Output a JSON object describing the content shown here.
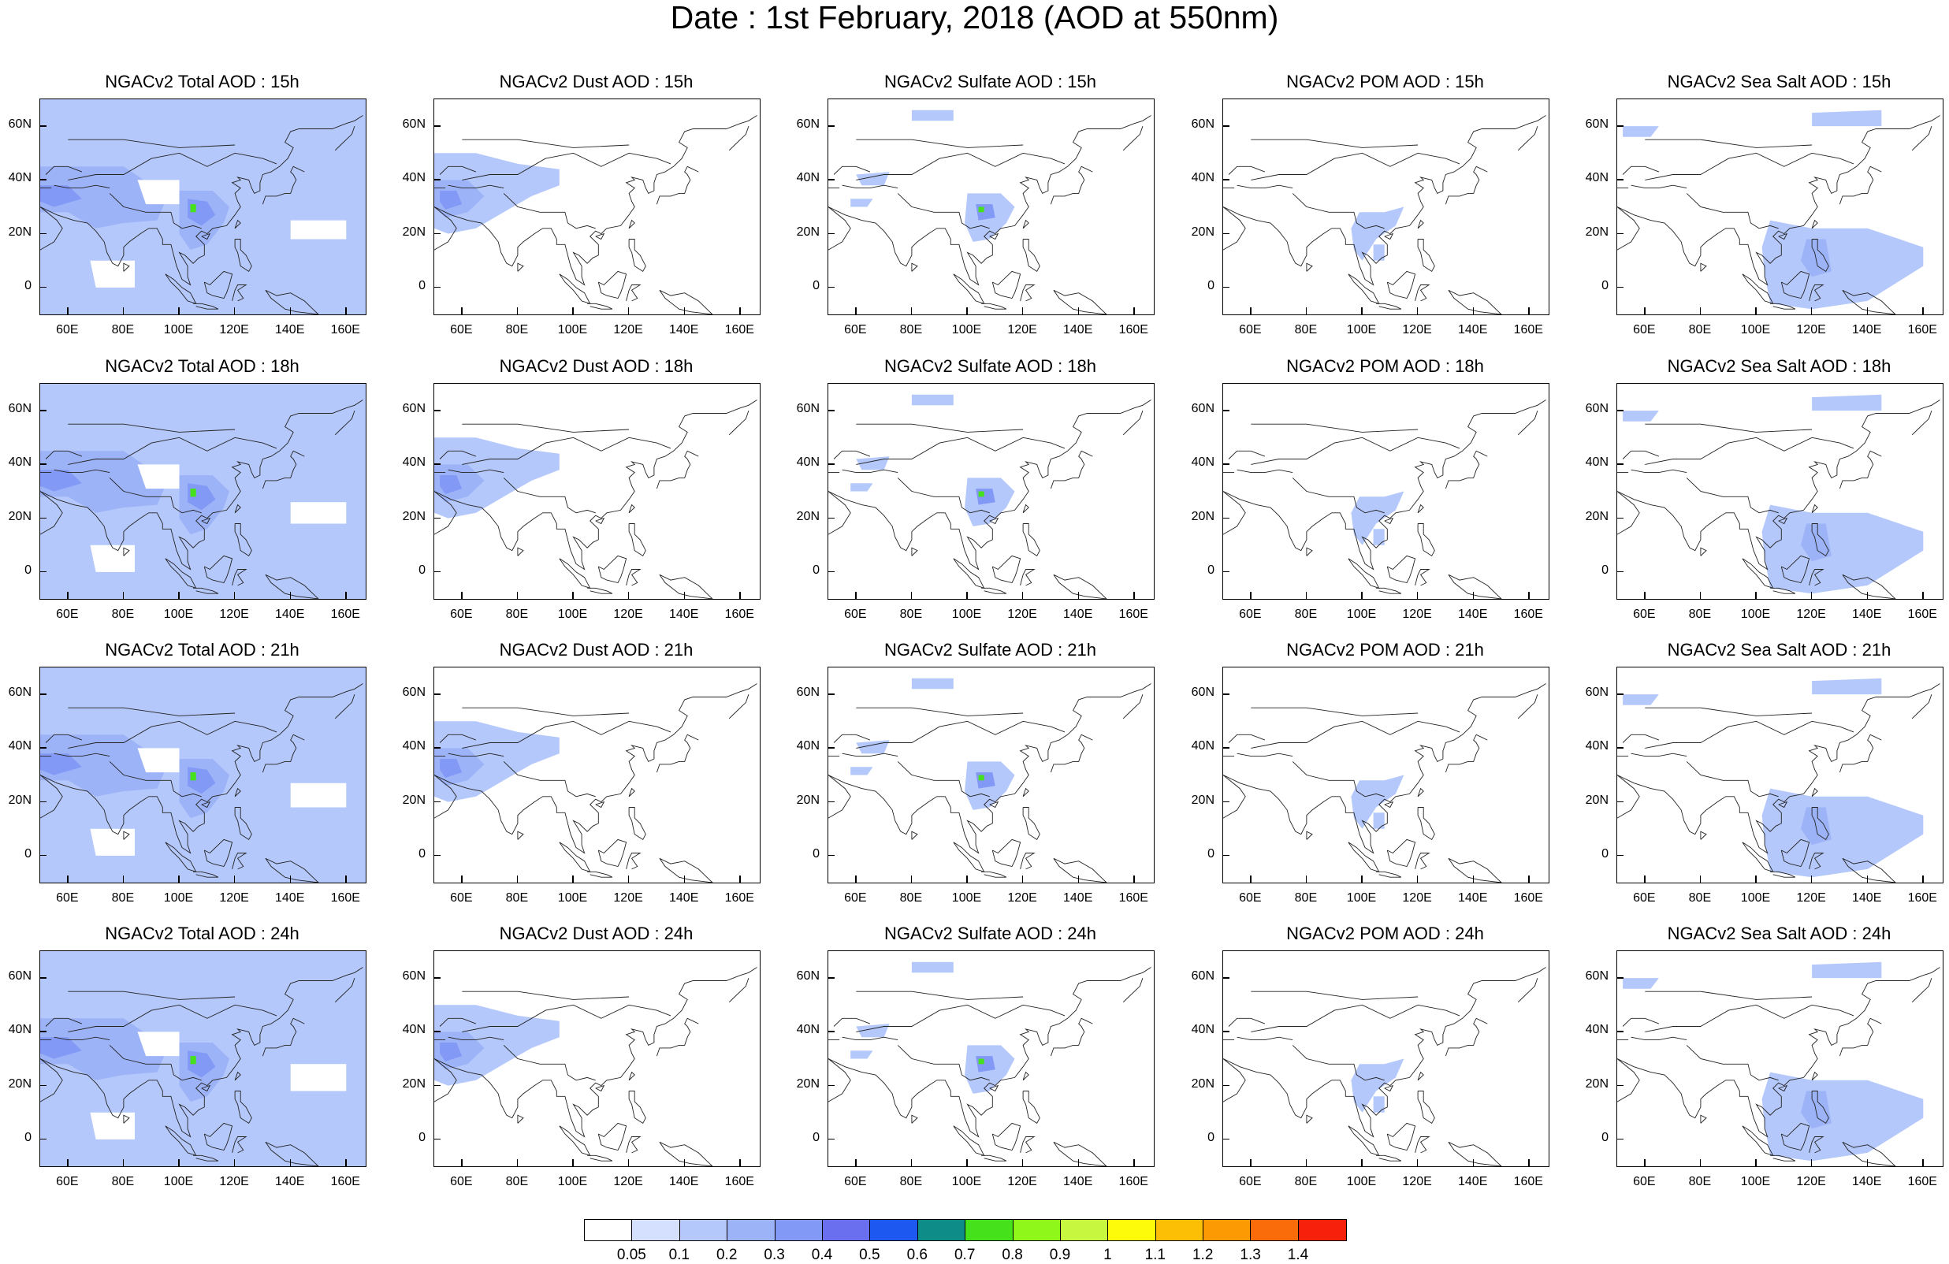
{
  "title": "Date : 1st February, 2018 (AOD at 550nm)",
  "panel_titles": [
    [
      "NGACv2 Total AOD : 15h",
      "NGACv2 Dust AOD : 15h",
      "NGACv2 Sulfate AOD : 15h",
      "NGACv2 POM AOD : 15h",
      "NGACv2 Sea Salt AOD : 15h"
    ],
    [
      "NGACv2 Total AOD : 18h",
      "NGACv2 Dust AOD : 18h",
      "NGACv2 Sulfate AOD : 18h",
      "NGACv2 POM AOD : 18h",
      "NGACv2 Sea Salt AOD : 18h"
    ],
    [
      "NGACv2 Total AOD : 21h",
      "NGACv2 Dust AOD : 21h",
      "NGACv2 Sulfate AOD : 21h",
      "NGACv2 POM AOD : 21h",
      "NGACv2 Sea Salt AOD : 21h"
    ],
    [
      "NGACv2 Total AOD : 24h",
      "NGACv2 Dust AOD : 24h",
      "NGACv2 Sulfate AOD : 24h",
      "NGACv2 POM AOD : 24h",
      "NGACv2 Sea Salt  AOD : 24h"
    ]
  ],
  "axes": {
    "lat_labels": [
      "60N",
      "40N",
      "20N",
      "0"
    ],
    "lon_labels": [
      "60E",
      "80E",
      "100E",
      "120E",
      "140E",
      "160E"
    ]
  },
  "colorbar": {
    "labels": [
      "0.05",
      "0.1",
      "0.2",
      "0.3",
      "0.4",
      "0.5",
      "0.6",
      "0.7",
      "0.8",
      "0.9",
      "1",
      "1.1",
      "1.2",
      "1.3",
      "1.4"
    ],
    "colors": [
      "#ffffff",
      "#d4e0fd",
      "#b4c8fb",
      "#9db3f8",
      "#8399f6",
      "#6a6ff0",
      "#1d58f0",
      "#0d8c88",
      "#45e11b",
      "#8ff81a",
      "#c7f83f",
      "#fdfb0a",
      "#fcbf06",
      "#fc9a04",
      "#fa6b09",
      "#f6200b"
    ]
  }
}
